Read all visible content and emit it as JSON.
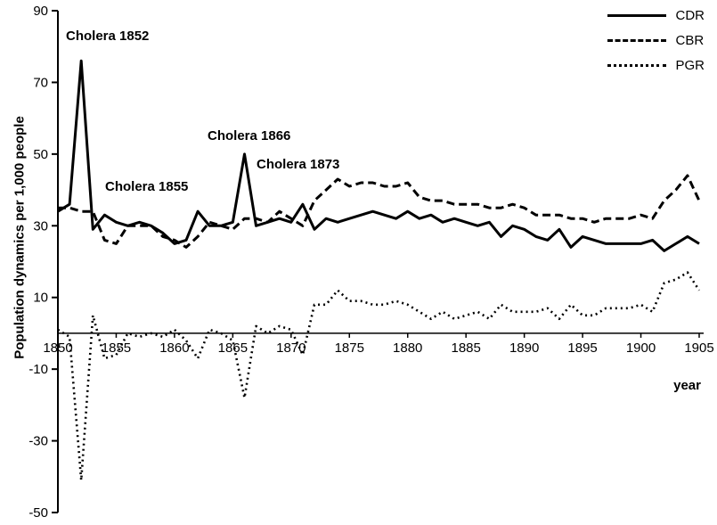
{
  "colors": {
    "line": "#000000",
    "background": "#ffffff"
  },
  "chart_data": {
    "type": "line",
    "title": "",
    "xlabel": "year",
    "ylabel": "Population dynamics per 1,000 people",
    "xlim": [
      1850,
      1905
    ],
    "ylim": [
      -50,
      90
    ],
    "x_ticks": [
      1850,
      1855,
      1860,
      1865,
      1870,
      1875,
      1880,
      1885,
      1890,
      1895,
      1900,
      1905
    ],
    "y_ticks": [
      90,
      70,
      50,
      30,
      10,
      -10,
      -30,
      -50
    ],
    "grid": false,
    "legend_position": "top-right",
    "years": [
      1850,
      1851,
      1852,
      1853,
      1854,
      1855,
      1856,
      1857,
      1858,
      1859,
      1860,
      1861,
      1862,
      1863,
      1864,
      1865,
      1866,
      1867,
      1868,
      1869,
      1870,
      1871,
      1872,
      1873,
      1874,
      1875,
      1876,
      1877,
      1878,
      1879,
      1880,
      1881,
      1882,
      1883,
      1884,
      1885,
      1886,
      1887,
      1888,
      1889,
      1890,
      1891,
      1892,
      1893,
      1894,
      1895,
      1896,
      1897,
      1898,
      1899,
      1900,
      1901,
      1902,
      1903,
      1904,
      1905
    ],
    "series": [
      {
        "name": "CDR",
        "line_style": "solid",
        "values": [
          34,
          36,
          76,
          29,
          33,
          31,
          30,
          31,
          30,
          28,
          25,
          26,
          34,
          30,
          30,
          31,
          50,
          30,
          31,
          32,
          31,
          36,
          29,
          32,
          31,
          32,
          33,
          34,
          33,
          32,
          34,
          32,
          33,
          31,
          32,
          31,
          30,
          31,
          27,
          30,
          29,
          27,
          26,
          29,
          24,
          27,
          26,
          25,
          25,
          25,
          25,
          26,
          23,
          25,
          27,
          25
        ]
      },
      {
        "name": "CBR",
        "line_style": "dashed",
        "values": [
          35,
          35,
          34,
          34,
          26,
          25,
          30,
          30,
          30,
          27,
          26,
          24,
          27,
          31,
          30,
          29,
          32,
          32,
          31,
          34,
          32,
          30,
          37,
          40,
          43,
          41,
          42,
          42,
          41,
          41,
          42,
          38,
          37,
          37,
          36,
          36,
          36,
          35,
          35,
          36,
          35,
          33,
          33,
          33,
          32,
          32,
          31,
          32,
          32,
          32,
          33,
          32,
          37,
          40,
          44,
          37
        ]
      },
      {
        "name": "PGR",
        "line_style": "dotted",
        "values": [
          1,
          -1,
          -41,
          5,
          -7,
          -6,
          0,
          -1,
          0,
          -1,
          1,
          -2,
          -7,
          1,
          0,
          -2,
          -18,
          2,
          0,
          2,
          1,
          -6,
          8,
          8,
          12,
          9,
          9,
          8,
          8,
          9,
          8,
          6,
          4,
          6,
          4,
          5,
          6,
          4,
          8,
          6,
          6,
          6,
          7,
          4,
          8,
          5,
          5,
          7,
          7,
          7,
          8,
          6,
          14,
          15,
          17,
          12
        ]
      }
    ],
    "annotations": [
      {
        "text": "Cholera 1852"
      },
      {
        "text": "Cholera 1855"
      },
      {
        "text": "Cholera 1866"
      },
      {
        "text": "Cholera 1873"
      }
    ]
  }
}
